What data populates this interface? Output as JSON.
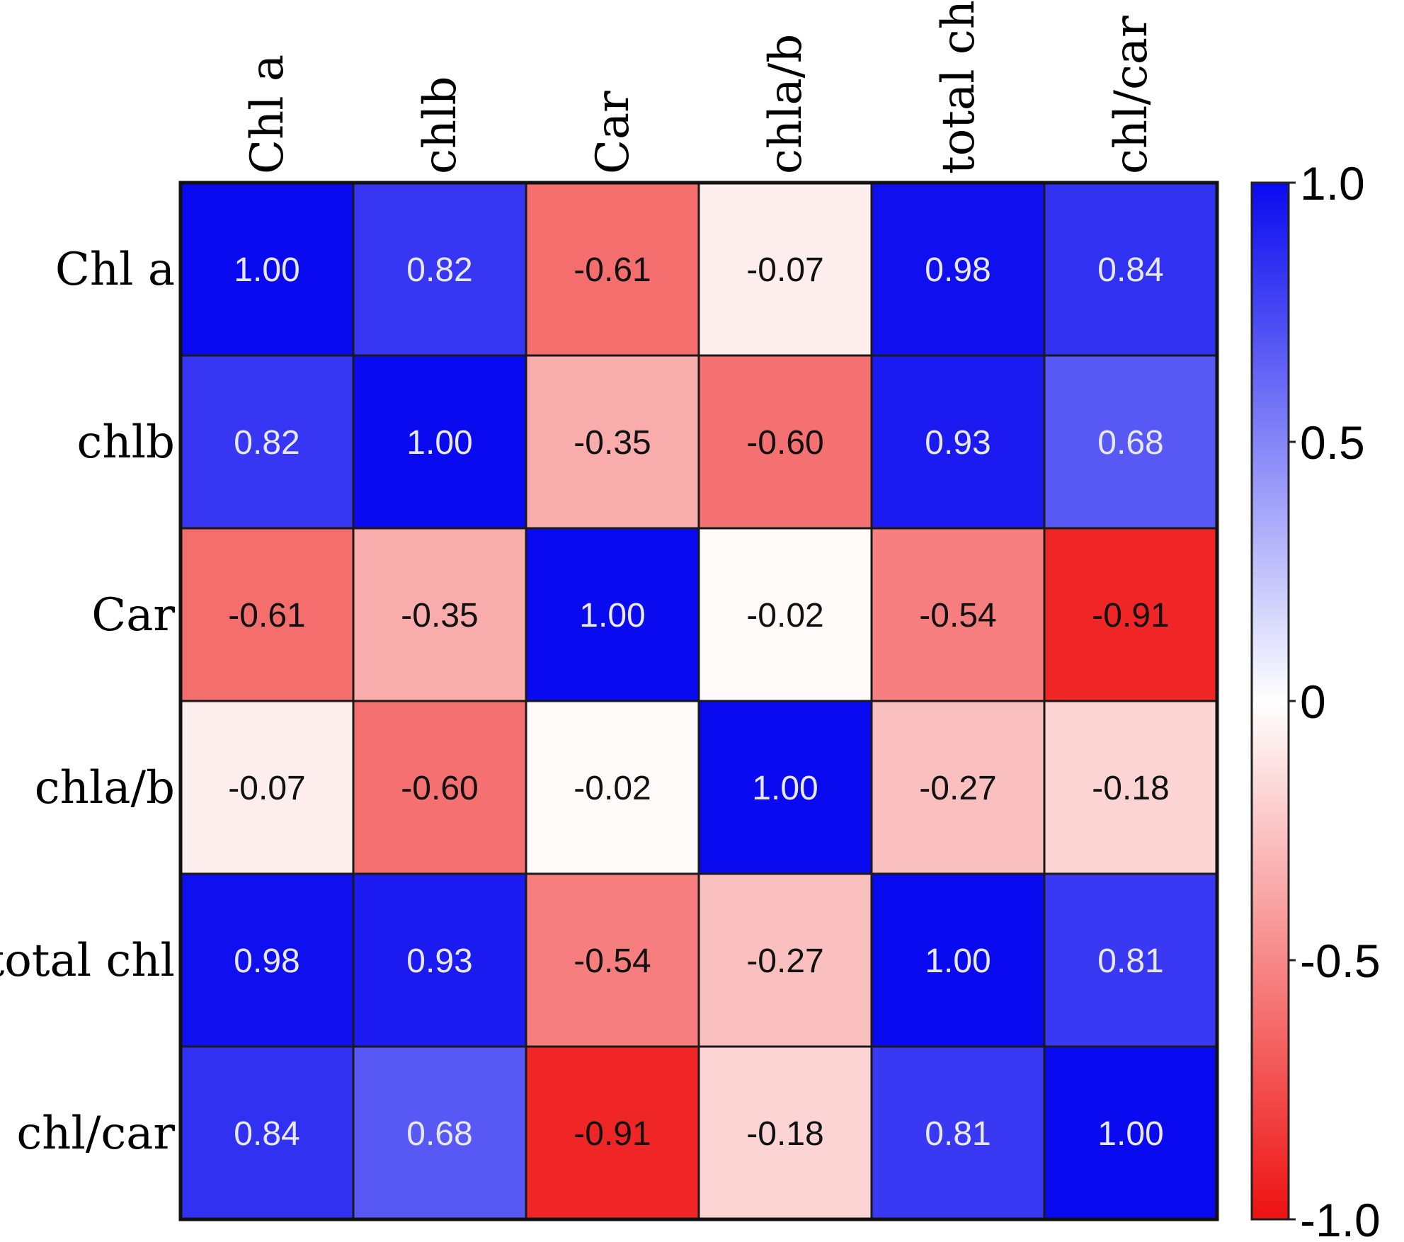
{
  "chart_data": {
    "type": "heatmap",
    "title": "",
    "xlabel": "",
    "ylabel": "",
    "variables": [
      "Chl a",
      "chlb",
      "Car",
      "chla/b",
      "total chl",
      "chl/car"
    ],
    "labels": [
      "1.00",
      "0.82",
      "-0.61",
      "-0.07",
      "0.98",
      "0.84",
      "0.82",
      "1.00",
      "-0.35",
      "-0.60",
      "0.93",
      "0.68",
      "-0.61",
      "-0.35",
      "1.00",
      "-0.02",
      "-0.54",
      "-0.91",
      "-0.07",
      "-0.60",
      "-0.02",
      "1.00",
      "-0.27",
      "-0.18",
      "0.98",
      "0.93",
      "-0.54",
      "-0.27",
      "1.00",
      "0.81",
      "0.84",
      "0.68",
      "-0.91",
      "-0.18",
      "0.81",
      "1.00"
    ],
    "values": [
      [
        1.0,
        0.82,
        -0.61,
        -0.07,
        0.98,
        0.84
      ],
      [
        0.82,
        1.0,
        -0.35,
        -0.6,
        0.93,
        0.68
      ],
      [
        -0.61,
        -0.35,
        1.0,
        -0.02,
        -0.54,
        -0.91
      ],
      [
        -0.07,
        -0.6,
        -0.02,
        1.0,
        -0.27,
        -0.18
      ],
      [
        0.98,
        0.93,
        -0.54,
        -0.27,
        1.0,
        0.81
      ],
      [
        0.84,
        0.68,
        -0.91,
        -0.18,
        0.81,
        1.0
      ]
    ],
    "colorbar": {
      "range": [
        -1.0,
        1.0
      ],
      "ticks": [
        1.0,
        0.5,
        0,
        -0.5,
        -1.0
      ],
      "tick_labels": [
        "1.0",
        "0.5",
        "0",
        "-0.5",
        "-1.0"
      ],
      "colors": {
        "low": "#ee1111",
        "mid": "#ffffff",
        "high": "#0a0af0"
      }
    },
    "legend_position": "right"
  }
}
